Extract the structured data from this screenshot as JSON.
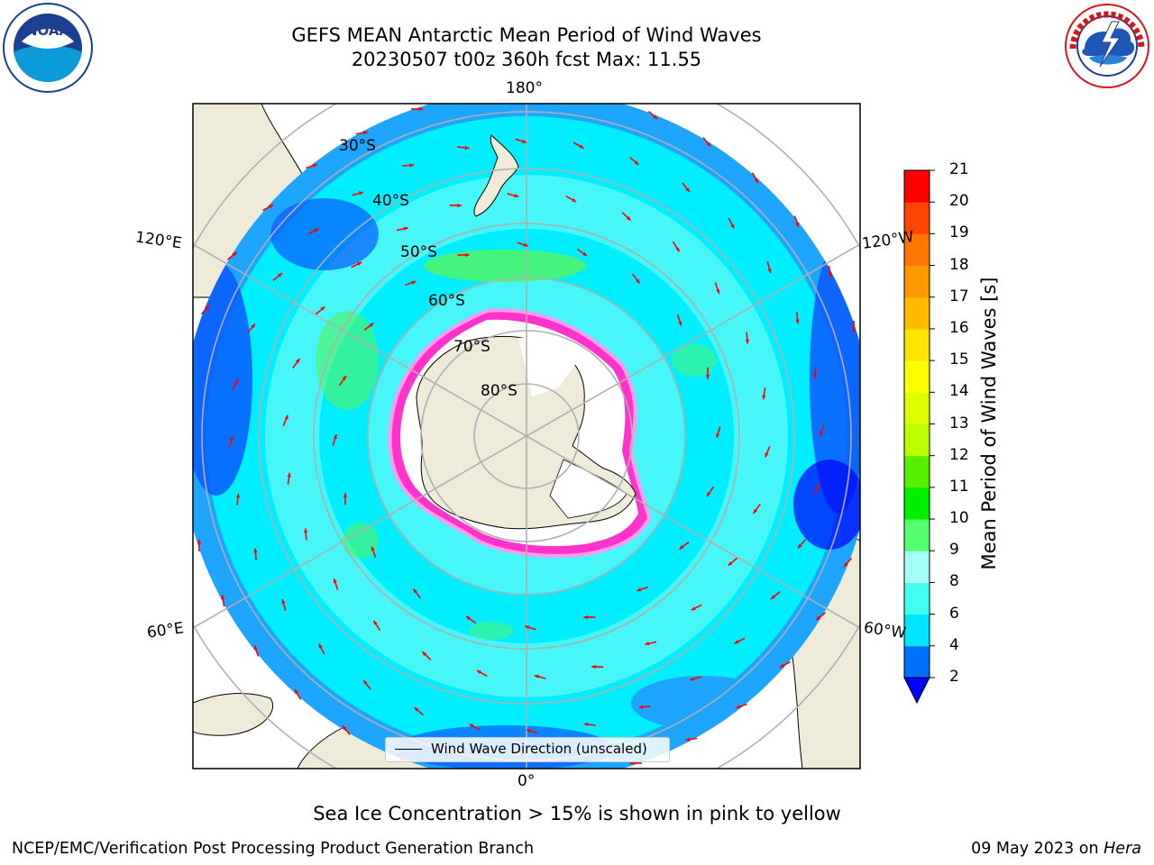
{
  "title": {
    "line1": "GEFS MEAN Antarctic Mean Period of Wind Waves",
    "line2": "20230507 t00z 360h fcst   Max: 11.55"
  },
  "map": {
    "projection": "south-polar-stereographic",
    "latitude_labels": [
      "30°S",
      "40°S",
      "50°S",
      "60°S",
      "70°S",
      "80°S"
    ],
    "longitude_labels": {
      "top": "180°",
      "bottom": "0°",
      "upper_left": "120°E",
      "upper_right": "120°W",
      "lower_left": "60°E",
      "lower_right": "60°W"
    },
    "legend_label": "Wind Wave Direction (unscaled)",
    "colors": {
      "land": "#eeecd8",
      "ocean_light": "#47f6f9",
      "ocean_cyan": "#00eeff",
      "ocean_mid": "#1ea5ff",
      "ocean_deep": "#0a5aff",
      "green": "#55f55b",
      "sea_ice_pink": "#ff33cc",
      "arrow": "#ff0000"
    }
  },
  "colorbar": {
    "label": "Mean Period of Wind Waves [s]",
    "ticks": [
      2,
      4,
      6,
      8,
      9,
      10,
      11,
      12,
      13,
      14,
      15,
      16,
      17,
      18,
      19,
      20,
      21
    ],
    "colors": [
      "#0070ff",
      "#00e5ff",
      "#40fff0",
      "#a6fff7",
      "#55ff70",
      "#00f000",
      "#55f000",
      "#bbff00",
      "#ddff00",
      "#ffff00",
      "#ffe500",
      "#ffbb00",
      "#ff9900",
      "#ff7700",
      "#ff4400",
      "#ff0000"
    ],
    "extend_min_color": "#0000ff"
  },
  "footer": {
    "note": "Sea Ice Concentration > 15% is shown in pink to yellow",
    "left": "NCEP/EMC/Verification Post Processing Product Generation Branch",
    "right_date": "09 May 2023 on ",
    "right_host": "Hera"
  },
  "logos": {
    "noaa": "NOAA",
    "nws": "NATIONAL WEATHER SERVICE"
  }
}
